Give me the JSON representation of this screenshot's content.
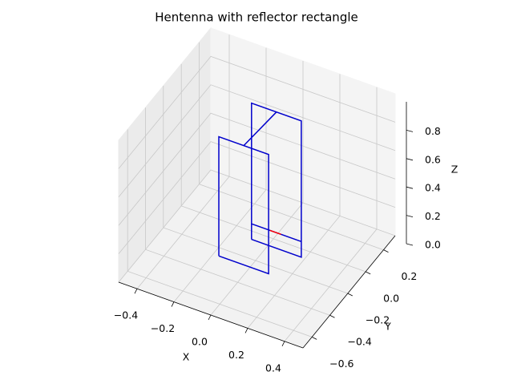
{
  "chart_data": {
    "type": "line3d",
    "title": "Hentenna with reflector rectangle",
    "xlabel": "X",
    "ylabel": "Y",
    "zlabel": "Z",
    "xlim": [
      -0.5,
      0.5
    ],
    "ylim": [
      -0.7,
      0.33
    ],
    "zlim": [
      0,
      1
    ],
    "xticks": [
      {
        "value": -0.4,
        "label": "−0.4"
      },
      {
        "value": -0.2,
        "label": "−0.2"
      },
      {
        "value": 0,
        "label": "0.0"
      },
      0.2,
      0.4
    ],
    "yticks": [
      {
        "value": -0.6,
        "label": "−0.6"
      },
      {
        "value": -0.4,
        "label": "−0.4"
      },
      {
        "value": -0.2,
        "label": "−0.2"
      },
      {
        "value": 0,
        "label": "0.0"
      },
      0.2
    ],
    "zticks": [
      {
        "value": 0,
        "label": "0.0"
      },
      0.2,
      0.4,
      0.6,
      0.8
    ],
    "grid": true,
    "series": [
      {
        "color": "#0000cc",
        "x": [
          -0.09,
          0.18,
          0.18,
          -0.09,
          -0.09,
          null,
          -0.09,
          0.18,
          null,
          -0.17,
          0.1,
          0.1,
          -0.17,
          -0.17,
          null,
          -0.035,
          0.045
        ],
        "y": [
          -0.06,
          -0.06,
          -0.06,
          -0.06,
          -0.06,
          null,
          -0.06,
          -0.06,
          null,
          -0.26,
          -0.26,
          -0.26,
          -0.26,
          -0.26,
          null,
          -0.26,
          -0.06
        ],
        "z": [
          0,
          0,
          0.96,
          0.96,
          0,
          null,
          0.11,
          0.11,
          null,
          0,
          0,
          0.84,
          0.84,
          0,
          null,
          0.84,
          0.96
        ]
      },
      {
        "color": "#ff0000",
        "x": [
          0.01,
          0.07
        ],
        "y": [
          -0.06,
          -0.06
        ],
        "z": [
          0.11,
          0.11
        ]
      }
    ]
  }
}
